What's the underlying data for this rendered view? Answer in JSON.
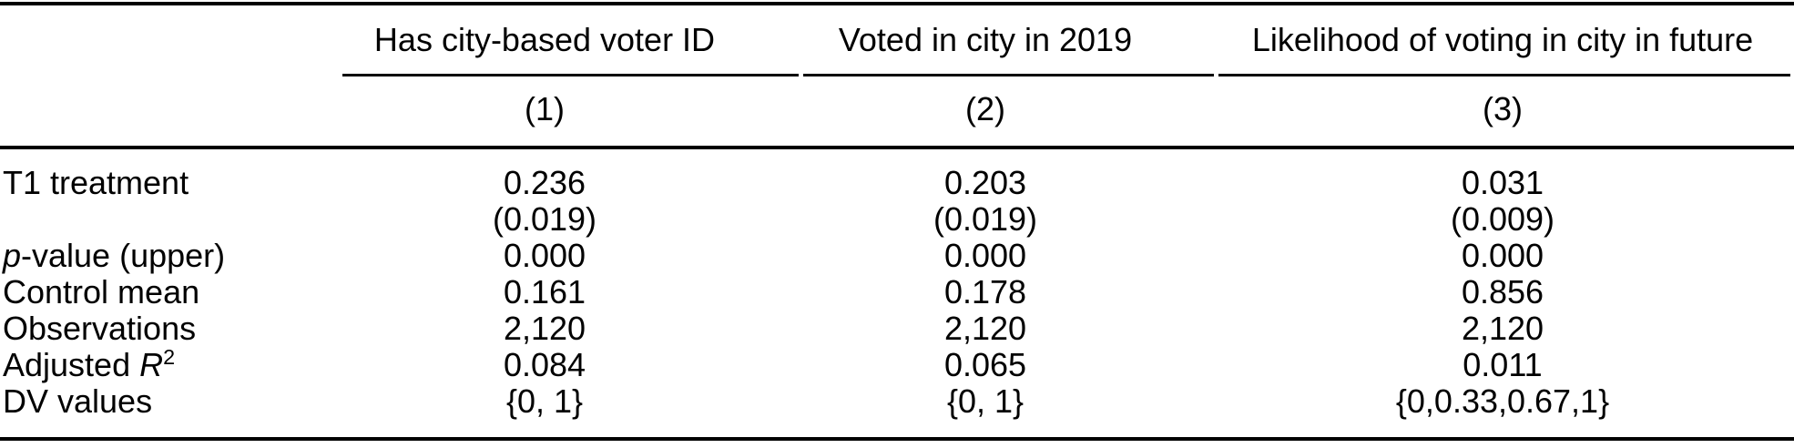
{
  "colors": {
    "text": "#000000",
    "background": "#ffffff",
    "rule": "#000000"
  },
  "table": {
    "column_groups": [
      {
        "title": "Has city-based voter ID",
        "number": "(1)"
      },
      {
        "title": "Voted in city in 2019",
        "number": "(2)"
      },
      {
        "title": "Likelihood of voting in city in future",
        "number": "(3)"
      }
    ],
    "rows": [
      {
        "label": "T1 treatment",
        "values": [
          "0.236",
          "0.203",
          "0.031"
        ]
      },
      {
        "label": "",
        "values": [
          "(0.019)",
          "(0.019)",
          "(0.009)"
        ]
      },
      {
        "label_italic": "p",
        "label_text": "-value (upper)",
        "values": [
          "0.000",
          "0.000",
          "0.000"
        ]
      },
      {
        "label": "Control mean",
        "values": [
          "0.161",
          "0.178",
          "0.856"
        ]
      },
      {
        "label": "Observations",
        "values": [
          "2,120",
          "2,120",
          "2,120"
        ]
      },
      {
        "label_text": "Adjusted ",
        "label_italic": "R",
        "label_sup": "2",
        "values": [
          "0.084",
          "0.065",
          "0.011"
        ]
      },
      {
        "label": "DV values",
        "values": [
          "{0, 1}",
          "{0, 1}",
          "{0,0.33,0.67,1}"
        ]
      }
    ]
  }
}
